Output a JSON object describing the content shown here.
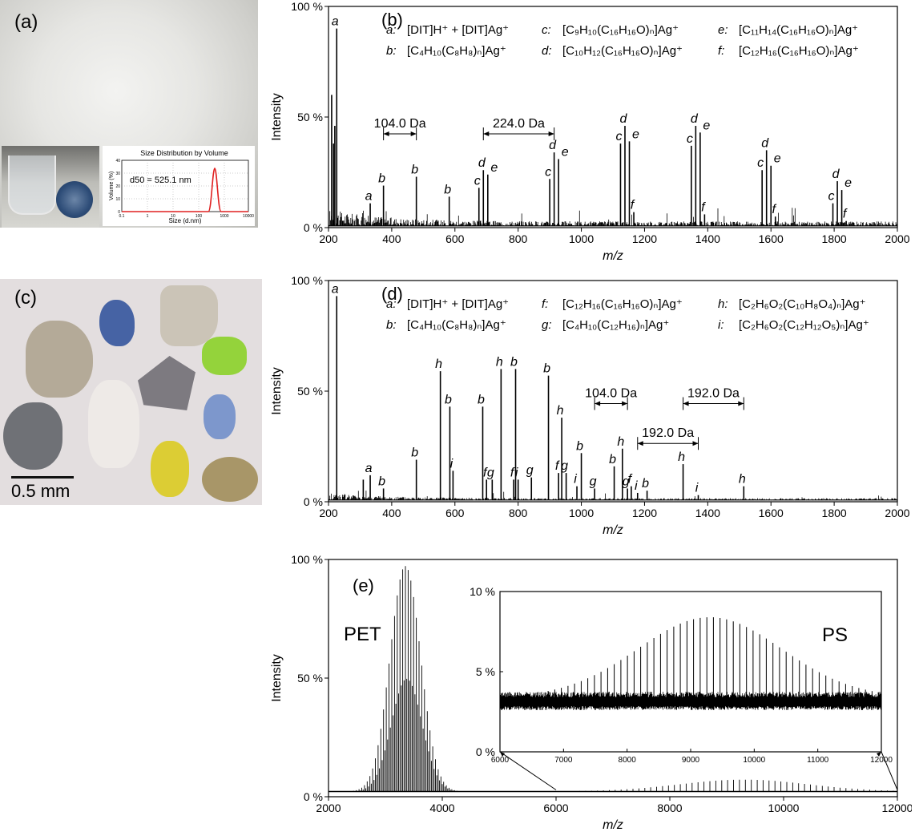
{
  "panel_a": {
    "label": "(a)",
    "inset": {
      "title": "Size Distribution by Volume",
      "ylabel": "Volume (%)",
      "xlabel": "Size (d.nm)",
      "annotation": "d50 = 525.1 nm",
      "xticks": [
        "0.1",
        "1",
        "10",
        "100",
        "1000",
        "10000"
      ],
      "yticks": [
        "0",
        "10",
        "20",
        "30",
        "40"
      ],
      "curve_color": "#e02020"
    }
  },
  "panel_c": {
    "label": "(c)",
    "scale_bar": "0.5 mm"
  },
  "chart_data": [
    {
      "id": "b",
      "type": "line",
      "panel_label": "(b)",
      "xlabel": "m/z",
      "ylabel": "Intensity",
      "xlim": [
        200,
        2000
      ],
      "ylim": [
        0,
        100
      ],
      "xticks": [
        "200",
        "400",
        "600",
        "800",
        "1000",
        "1200",
        "1400",
        "1600",
        "1800",
        "2000"
      ],
      "yticks": [
        "0 %",
        "50 %",
        "100 %"
      ],
      "legend": [
        {
          "key": "a:",
          "text": "[DIT]H⁺ + [DIT]Ag⁺"
        },
        {
          "key": "b:",
          "text": "[C₄H₁₀(C₈H₈)ₙ]Ag⁺"
        },
        {
          "key": "c:",
          "text": "[C₉H₁₀(C₁₆H₁₆O)ₙ]Ag⁺"
        },
        {
          "key": "d:",
          "text": "[C₁₀H₁₂(C₁₆H₁₆O)ₙ]Ag⁺"
        },
        {
          "key": "e:",
          "text": "[C₁₁H₁₄(C₁₆H₁₆O)ₙ]Ag⁺"
        },
        {
          "key": "f:",
          "text": "[C₁₂H₁₆(C₁₆H₁₆O)ₙ]Ag⁺"
        }
      ],
      "peaks": [
        {
          "x": 226,
          "y": 90,
          "label": "a"
        },
        {
          "x": 210,
          "y": 60,
          "label": ""
        },
        {
          "x": 216,
          "y": 38,
          "label": ""
        },
        {
          "x": 220,
          "y": 46,
          "label": ""
        },
        {
          "x": 332,
          "y": 11,
          "label": "a"
        },
        {
          "x": 374,
          "y": 19,
          "label": "b"
        },
        {
          "x": 478,
          "y": 23,
          "label": "b"
        },
        {
          "x": 582,
          "y": 14,
          "label": "b"
        },
        {
          "x": 676,
          "y": 18,
          "label": "c"
        },
        {
          "x": 690,
          "y": 26,
          "label": "d"
        },
        {
          "x": 704,
          "y": 24,
          "label": "e"
        },
        {
          "x": 900,
          "y": 22,
          "label": "c"
        },
        {
          "x": 914,
          "y": 34,
          "label": "d"
        },
        {
          "x": 928,
          "y": 31,
          "label": "e"
        },
        {
          "x": 1124,
          "y": 38,
          "label": "c"
        },
        {
          "x": 1138,
          "y": 46,
          "label": "d"
        },
        {
          "x": 1152,
          "y": 39,
          "label": "e"
        },
        {
          "x": 1166,
          "y": 7,
          "label": "f"
        },
        {
          "x": 1348,
          "y": 37,
          "label": "c"
        },
        {
          "x": 1362,
          "y": 46,
          "label": "d"
        },
        {
          "x": 1376,
          "y": 43,
          "label": "e"
        },
        {
          "x": 1390,
          "y": 6,
          "label": "f"
        },
        {
          "x": 1572,
          "y": 26,
          "label": "c"
        },
        {
          "x": 1586,
          "y": 35,
          "label": "d"
        },
        {
          "x": 1600,
          "y": 28,
          "label": "e"
        },
        {
          "x": 1614,
          "y": 5,
          "label": "f"
        },
        {
          "x": 1796,
          "y": 11,
          "label": "c"
        },
        {
          "x": 1810,
          "y": 21,
          "label": "d"
        },
        {
          "x": 1824,
          "y": 17,
          "label": "e"
        },
        {
          "x": 1838,
          "y": 3,
          "label": "f"
        }
      ],
      "annotations": [
        {
          "text": "104.0 Da",
          "x1": 374,
          "x2": 478,
          "y": 46
        },
        {
          "text": "224.0 Da",
          "x1": 690,
          "x2": 914,
          "y": 46
        }
      ]
    },
    {
      "id": "d",
      "type": "line",
      "panel_label": "(d)",
      "xlabel": "m/z",
      "ylabel": "Intensity",
      "xlim": [
        200,
        2000
      ],
      "ylim": [
        0,
        100
      ],
      "xticks": [
        "200",
        "400",
        "600",
        "800",
        "1000",
        "1200",
        "1400",
        "1600",
        "1800",
        "2000"
      ],
      "yticks": [
        "0 %",
        "50 %",
        "100 %"
      ],
      "legend": [
        {
          "key": "a:",
          "text": "[DIT]H⁺ + [DIT]Ag⁺"
        },
        {
          "key": "b:",
          "text": "[C₄H₁₀(C₈H₈)ₙ]Ag⁺"
        },
        {
          "key": "f:",
          "text": "[C₁₂H₁₆(C₁₆H₁₆O)ₙ]Ag⁺"
        },
        {
          "key": "g:",
          "text": "[C₄H₁₀(C₁₂H₁₆)ₙ]Ag⁺"
        },
        {
          "key": "h:",
          "text": "[C₂H₆O₂(C₁₀H₈O₄)ₙ]Ag⁺"
        },
        {
          "key": "i:",
          "text": "[C₂H₆O₂(C₁₂H₁₂O₅)ₙ]Ag⁺"
        }
      ],
      "peaks": [
        {
          "x": 226,
          "y": 93,
          "label": "a"
        },
        {
          "x": 332,
          "y": 12,
          "label": "a"
        },
        {
          "x": 310,
          "y": 10,
          "label": ""
        },
        {
          "x": 374,
          "y": 6,
          "label": "b"
        },
        {
          "x": 478,
          "y": 19,
          "label": "b"
        },
        {
          "x": 554,
          "y": 59,
          "label": "h"
        },
        {
          "x": 584,
          "y": 43,
          "label": "b"
        },
        {
          "x": 594,
          "y": 14,
          "label": "i"
        },
        {
          "x": 688,
          "y": 43,
          "label": "b"
        },
        {
          "x": 700,
          "y": 10,
          "label": "f"
        },
        {
          "x": 718,
          "y": 10,
          "label": "g"
        },
        {
          "x": 746,
          "y": 60,
          "label": "h"
        },
        {
          "x": 792,
          "y": 60,
          "label": "b"
        },
        {
          "x": 786,
          "y": 10,
          "label": "f"
        },
        {
          "x": 800,
          "y": 10,
          "label": "i"
        },
        {
          "x": 842,
          "y": 11,
          "label": "g"
        },
        {
          "x": 896,
          "y": 57,
          "label": "b"
        },
        {
          "x": 938,
          "y": 38,
          "label": "h"
        },
        {
          "x": 928,
          "y": 13,
          "label": "f"
        },
        {
          "x": 952,
          "y": 13,
          "label": "g"
        },
        {
          "x": 986,
          "y": 7,
          "label": "i"
        },
        {
          "x": 1000,
          "y": 22,
          "label": "b"
        },
        {
          "x": 1042,
          "y": 6,
          "label": "g"
        },
        {
          "x": 1104,
          "y": 16,
          "label": "b"
        },
        {
          "x": 1130,
          "y": 24,
          "label": "h"
        },
        {
          "x": 1146,
          "y": 6,
          "label": "g"
        },
        {
          "x": 1158,
          "y": 7,
          "label": "f"
        },
        {
          "x": 1178,
          "y": 4,
          "label": "i"
        },
        {
          "x": 1208,
          "y": 5,
          "label": "b"
        },
        {
          "x": 1322,
          "y": 17,
          "label": "h"
        },
        {
          "x": 1370,
          "y": 3,
          "label": "i"
        },
        {
          "x": 1514,
          "y": 7,
          "label": "h"
        }
      ],
      "annotations": [
        {
          "text": "104.0 Da",
          "x1": 1042,
          "x2": 1146,
          "y": 48
        },
        {
          "text": "192.0 Da",
          "x1": 1322,
          "x2": 1514,
          "y": 48
        },
        {
          "text": "192.0 Da",
          "x1": 1178,
          "x2": 1370,
          "y": 30
        }
      ]
    },
    {
      "id": "e",
      "type": "line",
      "panel_label": "(e)",
      "xlabel": "m/z",
      "ylabel": "Intensity",
      "xlim": [
        2000,
        12000
      ],
      "ylim": [
        0,
        100
      ],
      "xticks": [
        "2000",
        "4000",
        "6000",
        "8000",
        "10000",
        "12000"
      ],
      "yticks": [
        "0 %",
        "50 %",
        "100 %"
      ],
      "labels": [
        "PET",
        "PS"
      ],
      "pet_envelope": {
        "center": 3350,
        "width": 380,
        "peak": 95,
        "spacing": 48
      },
      "ps_envelope": {
        "center": 9300,
        "width": 1600,
        "peak": 5,
        "spacing": 104
      },
      "inset": {
        "xlim": [
          6000,
          12000
        ],
        "ylim": [
          0,
          10
        ],
        "xticks": [
          "6000",
          "7000",
          "8000",
          "9000",
          "10000",
          "11000",
          "12000"
        ],
        "yticks": [
          "0 %",
          "5 %",
          "10 %"
        ]
      }
    }
  ]
}
